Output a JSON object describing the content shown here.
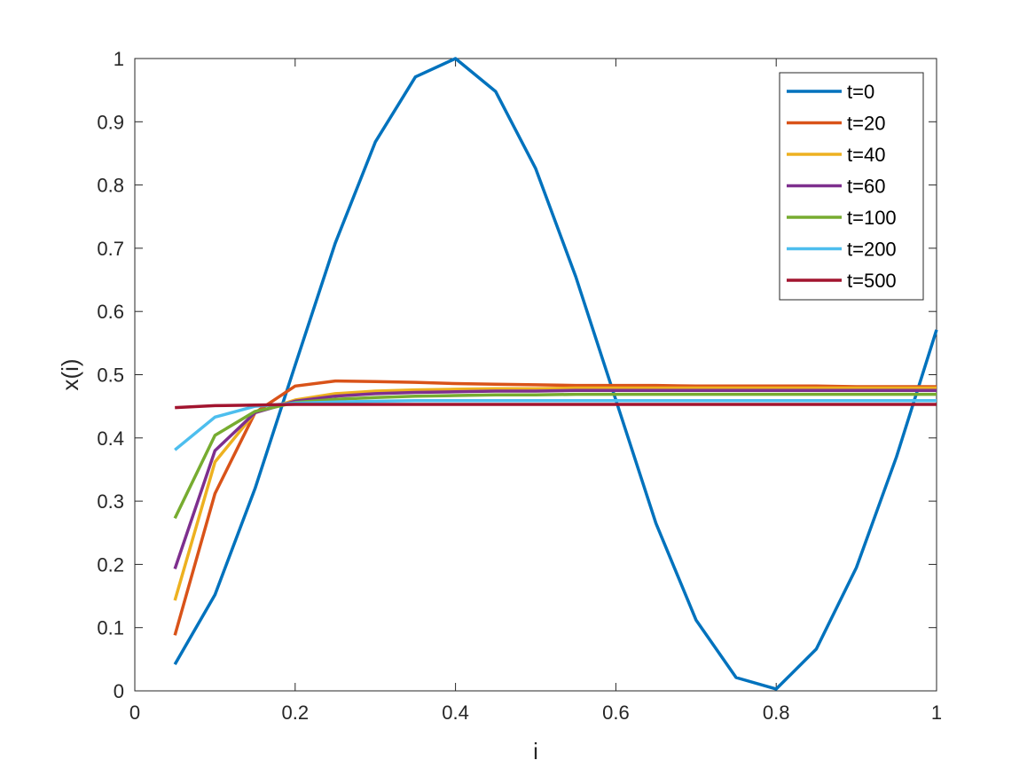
{
  "chart_data": {
    "type": "line",
    "title": "",
    "xlabel": "i",
    "ylabel": "x(i)",
    "xlim": [
      0,
      1
    ],
    "ylim": [
      0,
      1
    ],
    "grid": false,
    "legend_position": "top-right",
    "xticks": [
      "0",
      "0.2",
      "0.4",
      "0.6",
      "0.8",
      "1"
    ],
    "yticks": [
      "0",
      "0.1",
      "0.2",
      "0.3",
      "0.4",
      "0.5",
      "0.6",
      "0.7",
      "0.8",
      "0.9",
      "1"
    ],
    "x": [
      0.05,
      0.1,
      0.15,
      0.2,
      0.25,
      0.3,
      0.35,
      0.4,
      0.45,
      0.5,
      0.55,
      0.6,
      0.65,
      0.7,
      0.75,
      0.8,
      0.85,
      0.9,
      0.95,
      1.0
    ],
    "series": [
      {
        "name": "t=0",
        "color": "#0072BD",
        "values": [
          0.042,
          0.152,
          0.32,
          0.515,
          0.708,
          0.868,
          0.971,
          1.0,
          0.948,
          0.826,
          0.655,
          0.46,
          0.265,
          0.112,
          0.021,
          0.003,
          0.066,
          0.195,
          0.37,
          0.571
        ]
      },
      {
        "name": "t=20",
        "color": "#D95319",
        "values": [
          0.088,
          0.312,
          0.44,
          0.482,
          0.49,
          0.489,
          0.488,
          0.486,
          0.485,
          0.484,
          0.483,
          0.483,
          0.483,
          0.482,
          0.482,
          0.482,
          0.482,
          0.481,
          0.481,
          0.481
        ]
      },
      {
        "name": "t=40",
        "color": "#EDB120",
        "values": [
          0.143,
          0.362,
          0.44,
          0.46,
          0.47,
          0.474,
          0.476,
          0.477,
          0.478,
          0.478,
          0.479,
          0.479,
          0.479,
          0.479,
          0.479,
          0.479,
          0.479,
          0.479,
          0.479,
          0.479
        ]
      },
      {
        "name": "t=60",
        "color": "#7E2F8E",
        "values": [
          0.193,
          0.38,
          0.44,
          0.458,
          0.466,
          0.47,
          0.472,
          0.473,
          0.474,
          0.474,
          0.475,
          0.475,
          0.475,
          0.475,
          0.475,
          0.475,
          0.475,
          0.475,
          0.475,
          0.475
        ]
      },
      {
        "name": "t=100",
        "color": "#77AC30",
        "values": [
          0.273,
          0.404,
          0.442,
          0.456,
          0.461,
          0.464,
          0.466,
          0.467,
          0.468,
          0.468,
          0.469,
          0.469,
          0.469,
          0.469,
          0.469,
          0.469,
          0.469,
          0.469,
          0.469,
          0.469
        ]
      },
      {
        "name": "t=200",
        "color": "#4DBEEE",
        "values": [
          0.381,
          0.433,
          0.45,
          0.455,
          0.457,
          0.458,
          0.459,
          0.459,
          0.459,
          0.459,
          0.459,
          0.459,
          0.459,
          0.459,
          0.459,
          0.459,
          0.459,
          0.459,
          0.459,
          0.459
        ]
      },
      {
        "name": "t=500",
        "color": "#A2142F",
        "values": [
          0.448,
          0.451,
          0.452,
          0.453,
          0.453,
          0.453,
          0.453,
          0.453,
          0.453,
          0.453,
          0.453,
          0.453,
          0.453,
          0.453,
          0.453,
          0.453,
          0.453,
          0.453,
          0.453,
          0.453
        ]
      }
    ]
  }
}
